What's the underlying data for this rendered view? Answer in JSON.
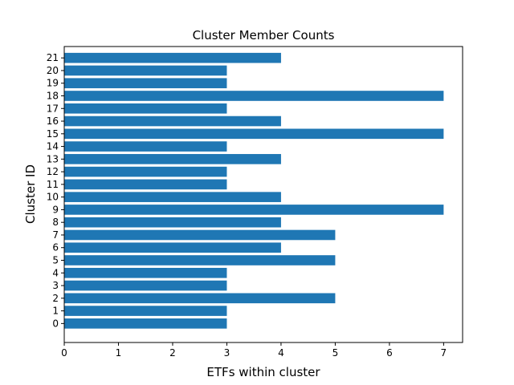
{
  "chart_data": {
    "type": "bar",
    "orientation": "horizontal",
    "title": "Cluster Member Counts",
    "xlabel": "ETFs within cluster",
    "ylabel": "Cluster ID",
    "categories": [
      "0",
      "1",
      "2",
      "3",
      "4",
      "5",
      "6",
      "7",
      "8",
      "9",
      "10",
      "11",
      "12",
      "13",
      "14",
      "15",
      "16",
      "17",
      "18",
      "19",
      "20",
      "21"
    ],
    "values": [
      3,
      3,
      5,
      3,
      3,
      5,
      4,
      5,
      4,
      7,
      4,
      3,
      3,
      4,
      3,
      7,
      4,
      3,
      7,
      3,
      3,
      4
    ],
    "xlim": [
      0,
      7.35
    ],
    "xticks": [
      0,
      1,
      2,
      3,
      4,
      5,
      6,
      7
    ],
    "grid": false,
    "legend": "none",
    "bar_color": "#1f77b4"
  }
}
